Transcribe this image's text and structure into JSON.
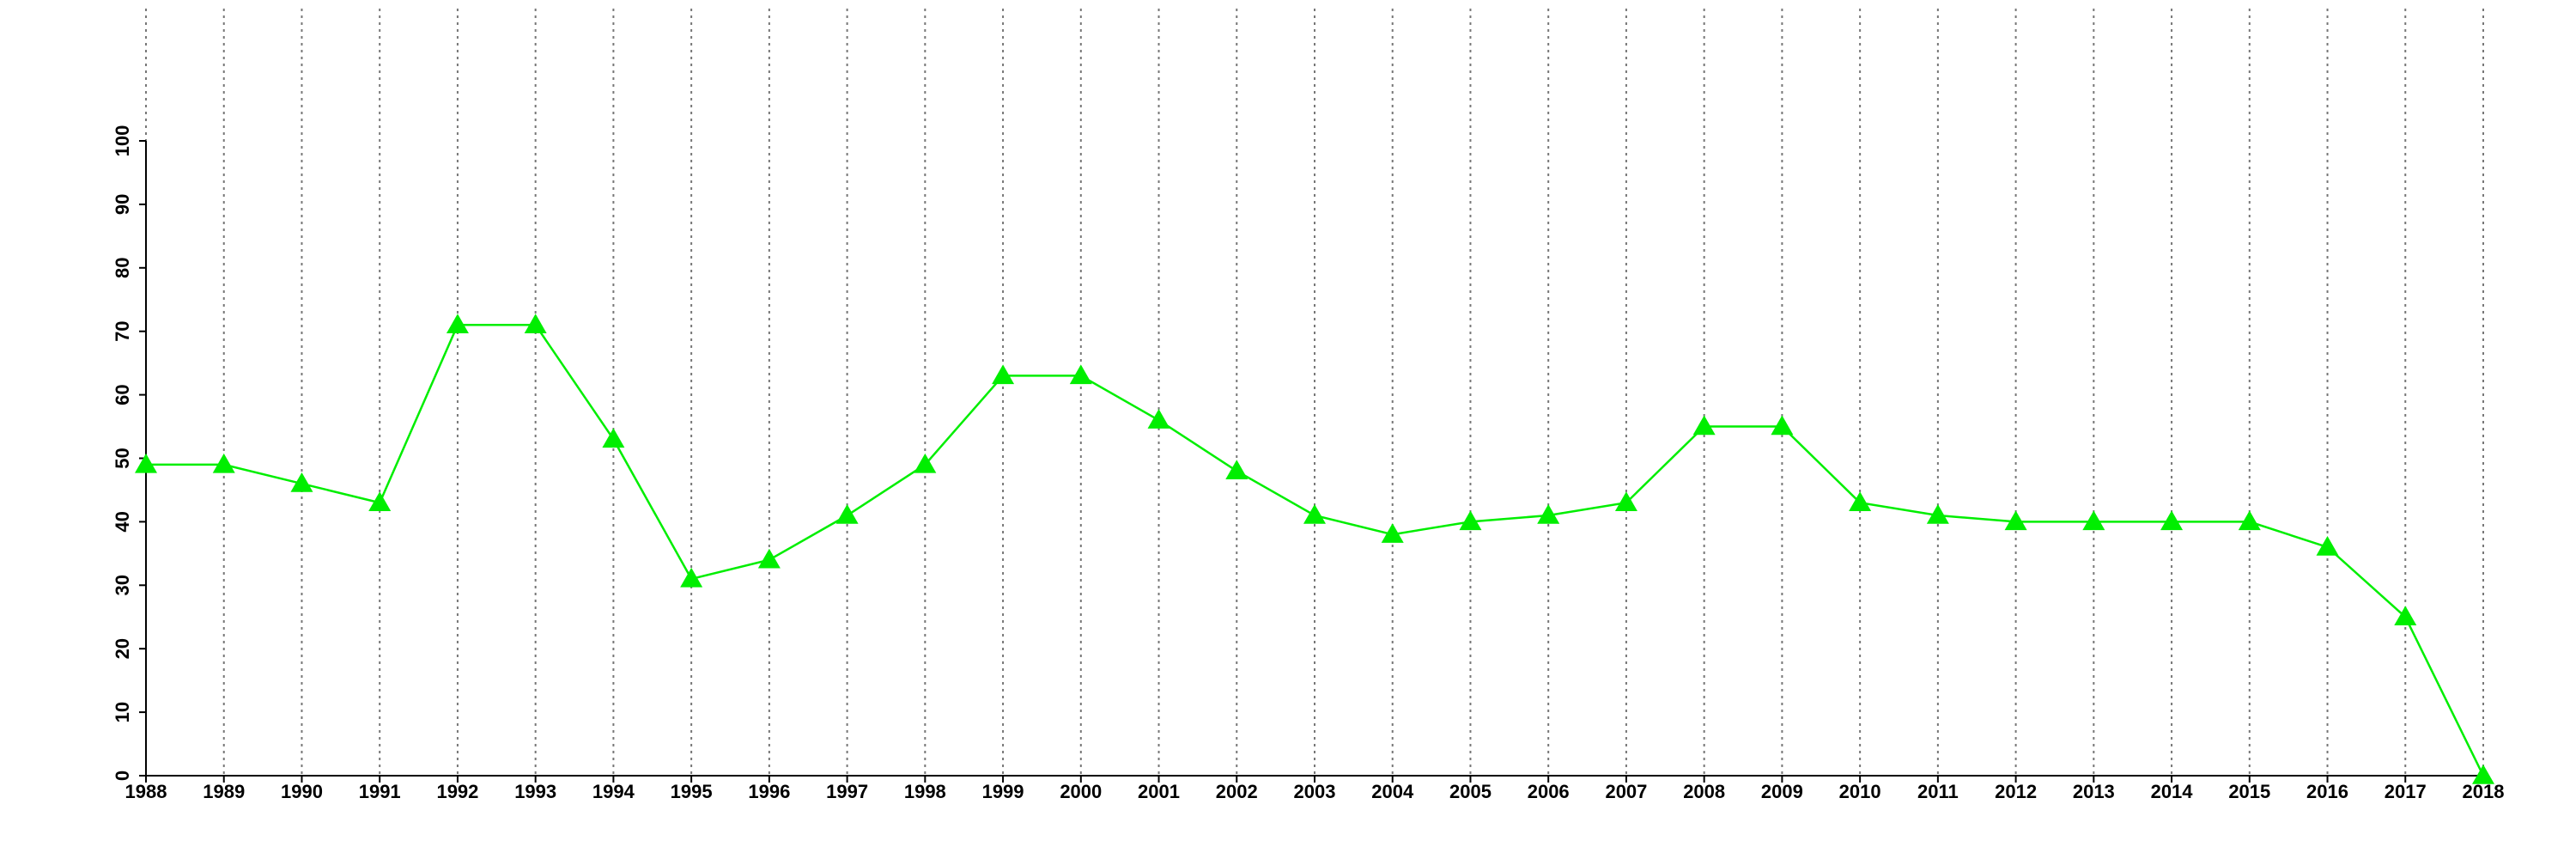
{
  "chart_data": {
    "type": "line",
    "x": [
      1988,
      1989,
      1990,
      1991,
      1992,
      1993,
      1994,
      1995,
      1996,
      1997,
      1998,
      1999,
      2000,
      2001,
      2002,
      2003,
      2004,
      2005,
      2006,
      2007,
      2008,
      2009,
      2010,
      2011,
      2012,
      2013,
      2014,
      2015,
      2016,
      2017,
      2018
    ],
    "series": [
      {
        "color": "#00ee00",
        "values": [
          49,
          49,
          46,
          43,
          71,
          71,
          53,
          31,
          34,
          41,
          49,
          63,
          63,
          56,
          48,
          41,
          38,
          40,
          41,
          43,
          55,
          55,
          43,
          41,
          40,
          40,
          40,
          40,
          36,
          25,
          0
        ]
      }
    ],
    "xlim": [
      1988,
      2018
    ],
    "xticks": [
      1988,
      1989,
      1990,
      1991,
      1992,
      1993,
      1994,
      1995,
      1996,
      1997,
      1998,
      1999,
      2000,
      2001,
      2002,
      2003,
      2004,
      2005,
      2006,
      2007,
      2008,
      2009,
      2010,
      2011,
      2012,
      2013,
      2014,
      2015,
      2016,
      2017,
      2018
    ],
    "ylim": [
      0,
      100
    ],
    "yticks": [
      0,
      10,
      20,
      30,
      40,
      50,
      60,
      70,
      80,
      90,
      100
    ],
    "grid": "x"
  }
}
